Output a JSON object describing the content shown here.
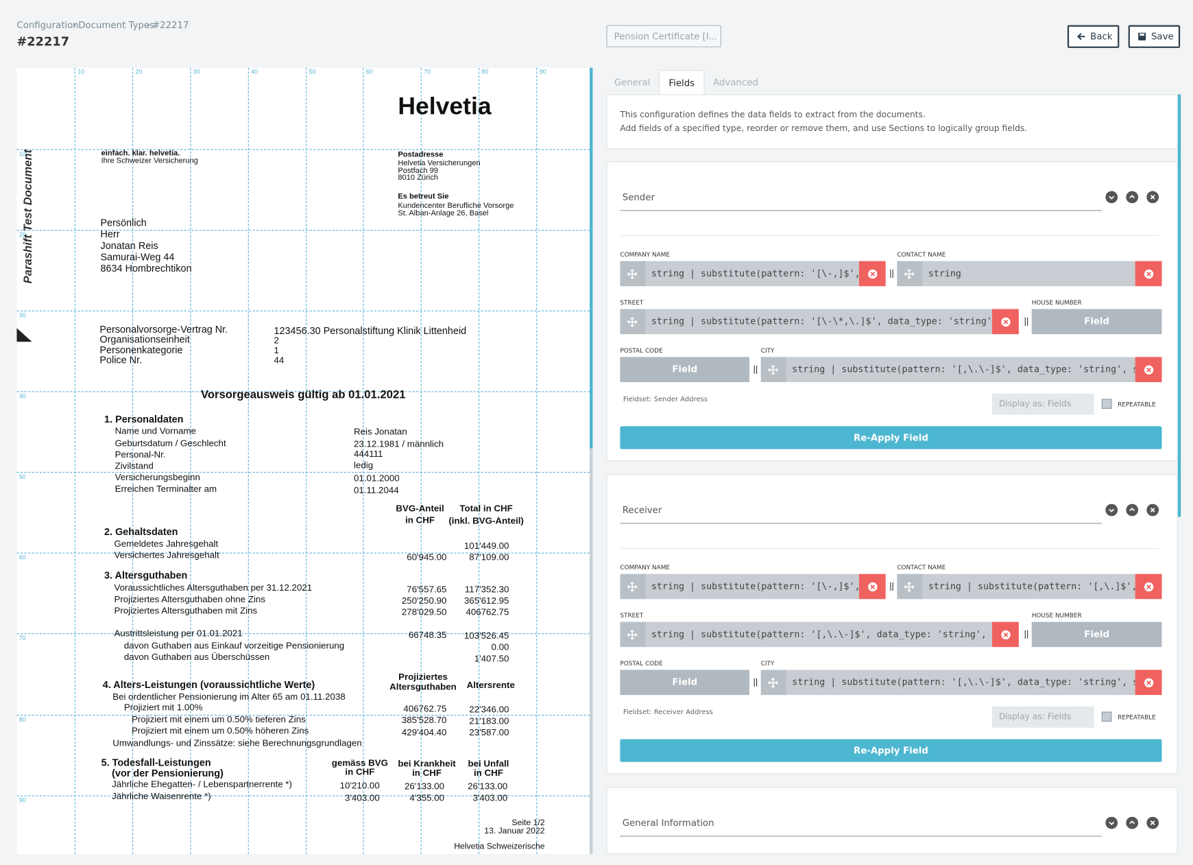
{
  "breadcrumb": [
    "Configuration",
    "Document Types",
    "#22217"
  ],
  "title": "#22217",
  "document_type": "Pension Certificate [I...",
  "buttons": {
    "back": "Back",
    "save": "Save"
  },
  "tabs": [
    "General",
    "Fields",
    "Advanced"
  ],
  "active_tab": 1,
  "description": [
    "This configuration defines the data fields to extract from the documents.",
    "Add fields of a specified type, reorder or remove them, and use Sections to logically group fields."
  ],
  "sections": [
    {
      "title": "Sender",
      "rows": [
        [
          {
            "label": "COMPANY NAME",
            "value": "string | substitute(pattern: '[\\-,]$',"
          },
          {
            "label": "CONTACT NAME",
            "value": "string"
          }
        ],
        [
          {
            "label": "STREET",
            "value": "string | substitute(pattern: '[\\-\\*,\\.]$', data_type: 'string',"
          },
          {
            "label": "HOUSE NUMBER",
            "button": "Field"
          }
        ],
        [
          {
            "label": "POSTAL CODE",
            "button": "Field"
          },
          {
            "label": "CITY",
            "value": "string | substitute(pattern: '[,\\.\\-]$', data_type: 'string', su"
          }
        ]
      ],
      "fieldset": "Fieldset: Sender Address",
      "display": "Display as: Fields",
      "repeatable": "REPEATABLE",
      "apply": "Re-Apply Field"
    },
    {
      "title": "Receiver",
      "rows": [
        [
          {
            "label": "COMPANY NAME",
            "value": "string | substitute(pattern: '[\\-,]$',"
          },
          {
            "label": "CONTACT NAME",
            "value": "string | substitute(pattern: '[,\\.]$',"
          }
        ],
        [
          {
            "label": "STREET",
            "value": "string | substitute(pattern: '[,\\.\\-]$', data_type: 'string', su"
          },
          {
            "label": "HOUSE NUMBER",
            "button": "Field"
          }
        ],
        [
          {
            "label": "POSTAL CODE",
            "button": "Field"
          },
          {
            "label": "CITY",
            "value": "string | substitute(pattern: '[,\\.\\-]$', data_type: 'string', su"
          }
        ]
      ],
      "fieldset": "Fieldset: Receiver Address",
      "display": "Display as: Fields",
      "repeatable": "REPEATABLE",
      "apply": "Re-Apply Field"
    },
    {
      "title": "General Information"
    }
  ],
  "document": {
    "side_label": "Parashift Test Document",
    "ruler_top": [
      10,
      20,
      30,
      40,
      50,
      60,
      70,
      80,
      90
    ],
    "ruler_left": [
      10,
      20,
      30,
      40,
      50,
      60,
      70,
      80,
      90
    ],
    "lines": [
      "Helvetia",
      "einfach. klar. helvetia.",
      "Ihre Schweizer Versicherung",
      "Postadresse",
      "Helvetia Versicherungen",
      "Postfach 99",
      "8010 Zürich",
      "Es betreut Sie",
      "Kundencenter Berufliche Vorsorge",
      "St. Alban-Anlage 26, Basel",
      "Persönlich",
      "Herr",
      "Jonatan Reis",
      "Samurai-Weg 44",
      "8634 Hombrechtikon",
      "Personalvorsorge-Vertrag Nr.",
      "Organisationseinheit",
      "Personenkategorie",
      "Police Nr.",
      "123456.30  Personalstiftung Klinik Littenheid",
      "2",
      "1",
      "44",
      "Vorsorgeausweis gültig ab 01.01.2021",
      "1. Personaldaten",
      "Name und Vorname",
      "Geburtsdatum / Geschlecht",
      "Personal-Nr.",
      "Zivilstand",
      "Versicherungsbeginn",
      "Erreichen Terminalter am",
      "Reis Jonatan",
      "23.12.1981 / männlich",
      "444111",
      "ledig",
      "01.01.2000",
      "01.11.2044",
      "BVG-Anteil",
      "in CHF",
      "Total in CHF",
      "(inkl. BVG-Anteil)",
      "2. Gehaltsdaten",
      "Gemeldetes Jahresgehalt",
      "Versichertes Jahresgehalt",
      "101'449.00",
      "60'945.00",
      "87'109.00",
      "3. Altersguthaben",
      "Voraussichtliches Altersguthaben per 31.12.2021",
      "Projiziertes Altersguthaben ohne Zins",
      "Projiziertes Altersguthaben mit Zins",
      "76'557.65",
      "117'352.30",
      "250'250.90",
      "365'612.95",
      "278'029.50",
      "406762.75",
      "Austrittsleistung per 01.01.2021",
      "davon Guthaben aus Einkauf vorzeitige Pensionierung",
      "davon Guthaben aus Überschüssen",
      "66748.35",
      "103'526.45",
      "0.00",
      "1'407.50",
      "4. Alters-Leistungen (voraussichtliche Werte)",
      "Projiziertes",
      "Altersguthaben",
      "Altersrente",
      "Bei ordentlicher Pensionierung im Alter 65 am 01.11.2038",
      "Projiziert mit 1.00%",
      "Projiziert mit einem um 0.50% tieferen Zins",
      "Projiziert mit einem um 0.50% höheren Zins",
      "Umwandlungs- und Zinssätze: siehe Berechnungsgrundlagen",
      "406762.75",
      "22'346.00",
      "385'528.70",
      "21'183.00",
      "429'404.40",
      "23'587.00",
      "5. Todesfall-Leistungen",
      "(vor der Pensionierung)",
      "gemäss BVG",
      "in CHF",
      "bei Krankheit",
      "in CHF",
      "bei Unfall",
      "in CHF",
      "Jährliche Ehegatten- / Lebenspartnerrente *)",
      "Jährliche Waisenrente *)",
      "10'210.00",
      "26'133.00",
      "26'133.00",
      "3'403.00",
      "4'355.00",
      "3'403.00",
      "Seite 1/2",
      "13. Januar 2022",
      "Helvetia Schweizerische"
    ]
  }
}
